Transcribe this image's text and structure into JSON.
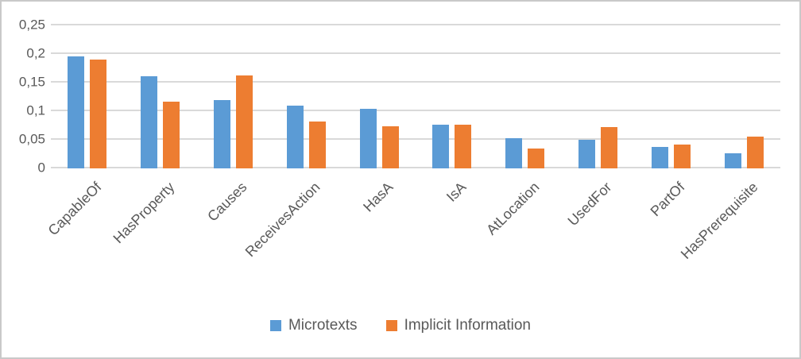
{
  "chart_data": {
    "type": "bar",
    "categories": [
      "CapableOf",
      "HasProperty",
      "Causes",
      "ReceivesAction",
      "HasA",
      "IsA",
      "AtLocation",
      "UsedFor",
      "PartOf",
      "HasPrerequisite"
    ],
    "series": [
      {
        "name": "Microtexts",
        "color": "#5B9BD5",
        "values": [
          0.196,
          0.161,
          0.119,
          0.11,
          0.104,
          0.076,
          0.053,
          0.05,
          0.037,
          0.027
        ]
      },
      {
        "name": "Implicit Information",
        "color": "#ED7D31",
        "values": [
          0.19,
          0.116,
          0.163,
          0.082,
          0.073,
          0.077,
          0.035,
          0.072,
          0.042,
          0.055
        ]
      }
    ],
    "title": "",
    "xlabel": "",
    "ylabel": "",
    "ylim": [
      0,
      0.25
    ],
    "yticks": [
      0,
      0.05,
      0.1,
      0.15,
      0.2,
      0.25
    ],
    "ytick_labels": [
      "0",
      "0,05",
      "0,1",
      "0,15",
      "0,2",
      "0,25"
    ],
    "decimal_separator": ",",
    "grid": true,
    "legend_position": "bottom"
  },
  "colors": {
    "background": "#FFFFFF",
    "frame_border": "#C9C9C9",
    "gridline": "#D9D9D9",
    "text": "#595959"
  }
}
